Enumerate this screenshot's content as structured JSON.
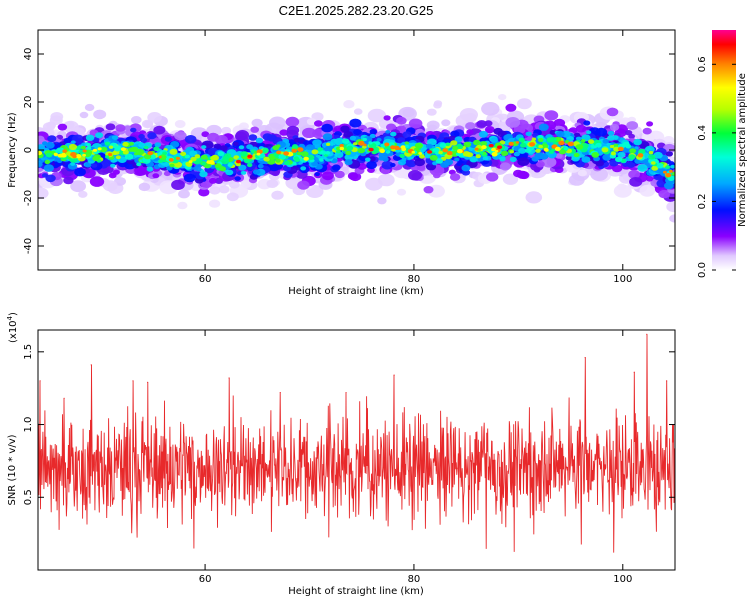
{
  "title": "C2E1.2025.282.23.20.G25",
  "chart_data": [
    {
      "type": "heatmap",
      "xlabel": "Height of straight line (km)",
      "ylabel": "Frequency (Hz)",
      "xlim": [
        44,
        105
      ],
      "ylim": [
        -50,
        50
      ],
      "x_ticks": [
        60,
        80,
        100
      ],
      "x_tick_labels": [
        "60",
        "80",
        "100"
      ],
      "y_ticks": [
        -40,
        -20,
        0,
        20,
        40
      ],
      "y_tick_labels": [
        "-40",
        "-20",
        "0",
        "20",
        "40"
      ],
      "colorbar": {
        "label": "Normalized spectral amplitude",
        "range": [
          0,
          0.7
        ],
        "ticks": [
          0,
          0.2,
          0.4,
          0.6
        ],
        "tick_labels": [
          "0.0",
          "0.2",
          "0.4",
          "0.6"
        ]
      },
      "ridge_center": {
        "x": [
          44,
          48,
          52,
          56,
          60,
          63,
          66,
          70,
          74,
          78,
          82,
          86,
          90,
          94,
          98,
          101,
          103,
          104.5
        ],
        "frequency": [
          -2,
          -2,
          0,
          -3,
          -5,
          -4,
          -2,
          -2,
          1,
          1,
          -1,
          0,
          2,
          2,
          1,
          -1,
          -5,
          -10
        ]
      }
    },
    {
      "type": "line",
      "xlabel": "Height of straight line (km)",
      "ylabel": "SNR (10 * v/v)",
      "scale_label": "(x10",
      "scale_exponent": "4",
      "scale_suffix": ")",
      "xlim": [
        44,
        105
      ],
      "ylim": [
        0,
        1.65
      ],
      "x_ticks": [
        60,
        80,
        100
      ],
      "x_tick_labels": [
        "60",
        "80",
        "100"
      ],
      "y_ticks": [
        0.5,
        1.0,
        1.5
      ],
      "y_tick_labels": [
        "0.5",
        "1.0",
        "1.5"
      ],
      "series": [
        {
          "name": "SNR",
          "color": "#e8292b",
          "mean": 0.7,
          "peaks_x": [
            44.2,
            46.5,
            49.1,
            53.1,
            54.5,
            62.3,
            67.2,
            73.5,
            78.1,
            96.4,
            101.1,
            102.3,
            104.2
          ],
          "peaks_y": [
            1.3,
            1.18,
            1.41,
            1.3,
            1.29,
            1.32,
            1.22,
            1.22,
            1.34,
            1.46,
            1.36,
            1.62,
            1.3
          ]
        }
      ]
    }
  ]
}
